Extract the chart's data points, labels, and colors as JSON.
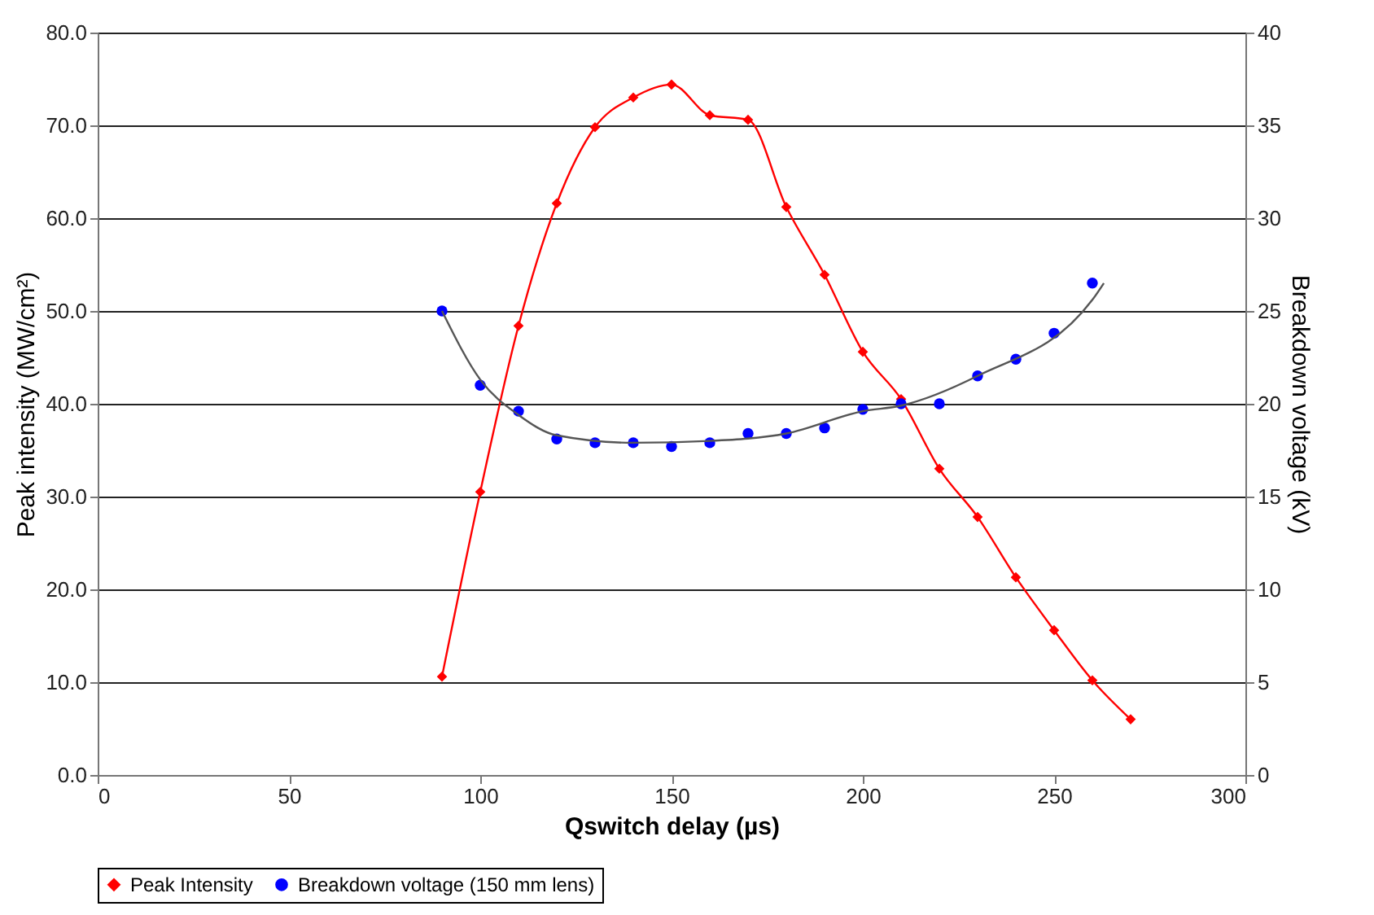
{
  "chart_data": {
    "type": "line",
    "xlabel": "Qswitch delay (µs)",
    "ylabel": "Peak intensity (MW/cm²)",
    "y2label": "Breakdown voltage (kV)",
    "xlim": [
      0,
      300
    ],
    "xticks": [
      0,
      50,
      100,
      150,
      200,
      250,
      300
    ],
    "ylim": [
      0,
      80
    ],
    "yticks": [
      {
        "value": 0,
        "label": "0.0"
      },
      {
        "value": 10,
        "label": "10.0"
      },
      {
        "value": 20,
        "label": "20.0"
      },
      {
        "value": 30,
        "label": "30.0"
      },
      {
        "value": 40,
        "label": "40.0"
      },
      {
        "value": 50,
        "label": "50.0"
      },
      {
        "value": 60,
        "label": "60.0"
      },
      {
        "value": 70,
        "label": "70.0"
      },
      {
        "value": 80,
        "label": "80.0"
      }
    ],
    "y2lim": [
      0,
      40
    ],
    "y2ticks": [
      0,
      5,
      10,
      15,
      20,
      25,
      30,
      35,
      40
    ],
    "grid": "y",
    "legend": "bottom",
    "series": [
      {
        "name": "Peak Intensity",
        "marker": "diamond",
        "color": "#ff0000",
        "x": [
          90,
          100,
          110,
          120,
          130,
          140,
          150,
          160,
          170,
          180,
          190,
          200,
          210,
          220,
          230,
          240,
          250,
          260,
          270
        ],
        "values": [
          10.6,
          30.5,
          48.4,
          61.6,
          69.8,
          73.0,
          74.4,
          71.1,
          70.6,
          61.2,
          53.9,
          45.6,
          40.5,
          33.0,
          27.8,
          21.3,
          15.6,
          10.2,
          6.0
        ]
      },
      {
        "name": "Breakdown voltage (150 mm lens)",
        "type": "scatter",
        "marker": "circle",
        "axis": "y2",
        "color": "#0000ff",
        "x": [
          90,
          100,
          110,
          120,
          130,
          140,
          150,
          160,
          170,
          180,
          190,
          200,
          210,
          220,
          230,
          240,
          250,
          260
        ],
        "values": [
          25.0,
          21.0,
          19.6,
          18.1,
          17.9,
          17.9,
          17.7,
          17.9,
          18.4,
          18.4,
          18.7,
          19.7,
          20.0,
          20.0,
          21.5,
          22.4,
          23.8,
          26.5
        ]
      },
      {
        "marker": "none",
        "axis": "y2",
        "color": "#555555",
        "x": [
          90,
          100,
          110,
          120,
          140,
          160,
          180,
          200,
          210,
          230,
          260,
          263
        ],
        "values": [
          25.0,
          21.3,
          19.4,
          18.3,
          17.9,
          18.0,
          18.4,
          19.6,
          19.9,
          21.5,
          25.6,
          26.5
        ]
      }
    ]
  }
}
